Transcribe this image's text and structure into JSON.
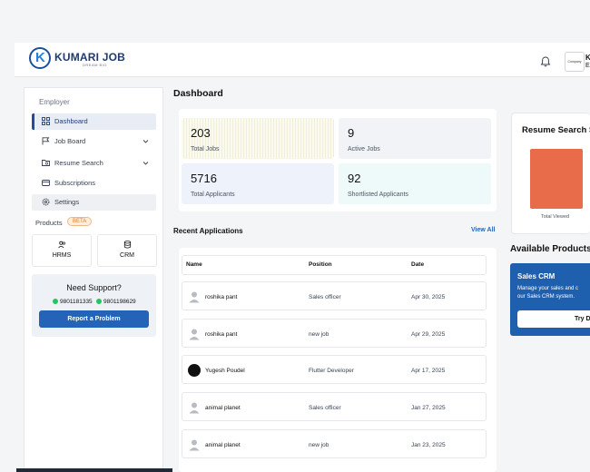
{
  "header": {
    "logo_letter": "K",
    "logo_title": "KUMARI JOB",
    "logo_tagline": "DREAM BIG",
    "company_logo_text": "Company",
    "user_initial": "K",
    "user_sub": "Em"
  },
  "sidebar": {
    "heading": "Employer",
    "items": [
      {
        "label": "Dashboard",
        "icon": "grid-icon",
        "active": true
      },
      {
        "label": "Job Board",
        "icon": "flag-icon",
        "has_chevron": true
      },
      {
        "label": "Resume Search",
        "icon": "folder-search-icon",
        "has_chevron": true
      },
      {
        "label": "Subscriptions",
        "icon": "card-icon"
      },
      {
        "label": "Settings",
        "icon": "gear-icon"
      }
    ],
    "products_label": "Products",
    "beta_badge": "BETA",
    "products": [
      {
        "label": "HRMS",
        "icon": "users-icon"
      },
      {
        "label": "CRM",
        "icon": "database-icon"
      }
    ],
    "support": {
      "title": "Need Support?",
      "phone1": "9801181335",
      "phone2": "9801198629",
      "button": "Report a Problem"
    }
  },
  "main": {
    "title": "Dashboard",
    "stats": [
      {
        "value": "203",
        "label": "Total Jobs"
      },
      {
        "value": "9",
        "label": "Active Jobs"
      },
      {
        "value": "5716",
        "label": "Total Applicants"
      },
      {
        "value": "92",
        "label": "Shortlisted Applicants"
      }
    ],
    "recent_title": "Recent Applications",
    "view_all": "View All",
    "table": {
      "headers": [
        "Name",
        "Position",
        "Date"
      ],
      "rows": [
        {
          "name": "roshika pant",
          "position": "Sales officer",
          "date": "Apr 30, 2025",
          "avatar": "default"
        },
        {
          "name": "roshika pant",
          "position": "new job",
          "date": "Apr 29, 2025",
          "avatar": "default"
        },
        {
          "name": "Yugesh Poudel",
          "position": "Flutter Developer",
          "date": "Apr 17, 2025",
          "avatar": "photo"
        },
        {
          "name": "animal planet",
          "position": "Sales officer",
          "date": "Jan 27, 2025",
          "avatar": "default"
        },
        {
          "name": "animal planet",
          "position": "new job",
          "date": "Jan 23, 2025",
          "avatar": "default"
        }
      ]
    }
  },
  "right": {
    "resume_title": "Resume Search S",
    "bar_label": "Total Viewed",
    "bar_color": "#e86c4a",
    "available_title": "Available Products",
    "crm_card": {
      "title": "Sales CRM",
      "desc_line1": "Manage your sales and c",
      "desc_line2": "our Sales CRM system.",
      "button": "Try D"
    }
  },
  "colors": {
    "accent": "#2563b8",
    "brand": "#1e4f9c",
    "crm_card": "#1e5fae"
  }
}
